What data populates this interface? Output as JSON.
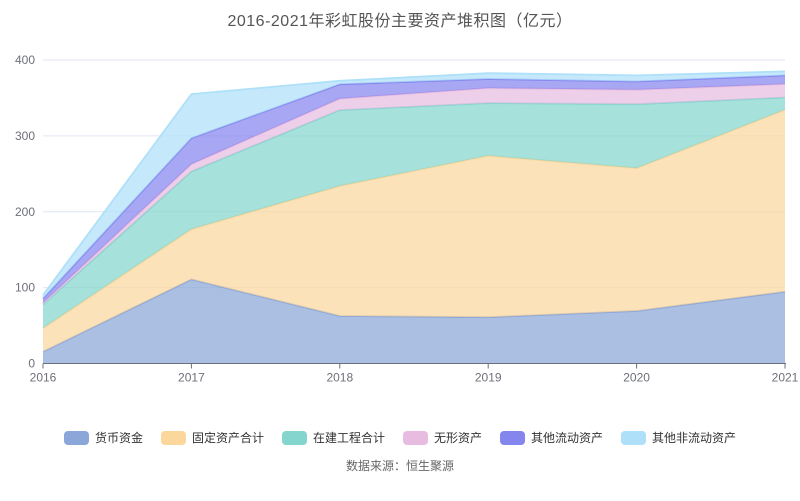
{
  "title": "2016-2021年彩虹股份主要资产堆积图（亿元）",
  "source_note": "数据来源：恒生聚源",
  "colors": {
    "grid": "#E0E6F1",
    "axis_line": "#6E7079",
    "axis_text": "#6E7079"
  },
  "chart_data": {
    "type": "area",
    "stacked": true,
    "title": "2016-2021年彩虹股份主要资产堆积图（亿元）",
    "x": [
      "2016",
      "2017",
      "2018",
      "2019",
      "2020",
      "2021"
    ],
    "y_ticks": [
      0,
      100,
      200,
      300,
      400
    ],
    "ylim": [
      0,
      400
    ],
    "grid": true,
    "legend_position": "bottom",
    "series": [
      {
        "name": "货币资金",
        "color": "#8BA6D8",
        "values": [
          15.6,
          110.9,
          62.6,
          61.0,
          69.2,
          94.6
        ]
      },
      {
        "name": "固定资产合计",
        "color": "#FBD79C",
        "values": [
          30.8,
          66.1,
          171.4,
          212.7,
          188.2,
          239.8
        ]
      },
      {
        "name": "在建工程合计",
        "color": "#85D5CF",
        "values": [
          31.2,
          76.0,
          100.0,
          69.5,
          84.4,
          16.2
        ]
      },
      {
        "name": "无形资产",
        "color": "#E8BCE0",
        "values": [
          2.2,
          9.7,
          15.0,
          19.8,
          18.9,
          17.7
        ]
      },
      {
        "name": "其他流动资产",
        "color": "#8585EE",
        "values": [
          5.7,
          34.3,
          19.0,
          11.9,
          11.0,
          11.4
        ]
      },
      {
        "name": "其他非流动资产",
        "color": "#AEE0F9",
        "values": [
          4.5,
          58.0,
          4.6,
          7.9,
          8.0,
          5.3
        ]
      }
    ]
  }
}
